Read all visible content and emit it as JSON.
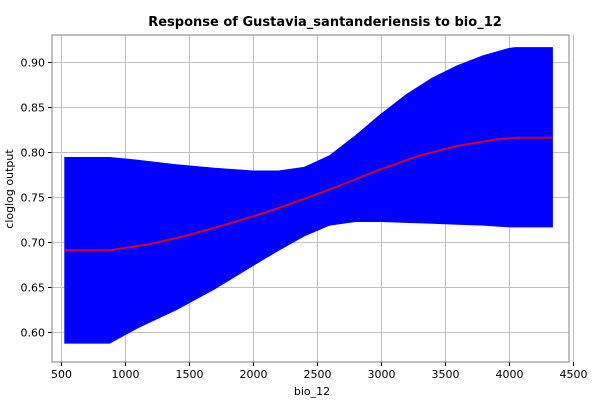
{
  "chart_data": {
    "type": "area",
    "title": "Response of Gustavia_santanderiensis to bio_12",
    "xlabel": "bio_12",
    "ylabel": "cloglog output",
    "xlim": [
      430,
      4470
    ],
    "ylim": [
      0.567,
      0.93
    ],
    "xticks": [
      500,
      1000,
      1500,
      2000,
      2500,
      3000,
      3500,
      4000,
      4500
    ],
    "xtick_labels": [
      "500",
      "1000",
      "1500",
      "2000",
      "2500",
      "3000",
      "3500",
      "4000",
      "4500"
    ],
    "yticks": [
      0.6,
      0.65,
      0.7,
      0.75,
      0.8,
      0.85,
      0.9
    ],
    "ytick_labels": [
      "0.60",
      "0.65",
      "0.70",
      "0.75",
      "0.80",
      "0.85",
      "0.90"
    ],
    "grid": true,
    "band_color": "#0000ff",
    "line_color": "#cc0033",
    "series": [
      {
        "role": "mean",
        "x": [
          530,
          880,
          1200,
          1500,
          1800,
          2100,
          2400,
          2700,
          3000,
          3300,
          3600,
          3900,
          4050,
          4340
        ],
        "values": [
          0.691,
          0.691,
          0.698,
          0.708,
          0.72,
          0.733,
          0.748,
          0.764,
          0.781,
          0.796,
          0.807,
          0.814,
          0.816,
          0.816
        ]
      },
      {
        "role": "upper",
        "x": [
          530,
          880,
          1100,
          1400,
          1700,
          2000,
          2200,
          2400,
          2600,
          2800,
          3000,
          3200,
          3400,
          3600,
          3800,
          4000,
          4050,
          4340
        ],
        "values": [
          0.794,
          0.794,
          0.791,
          0.786,
          0.782,
          0.779,
          0.779,
          0.783,
          0.796,
          0.818,
          0.842,
          0.864,
          0.882,
          0.896,
          0.907,
          0.915,
          0.916,
          0.916
        ]
      },
      {
        "role": "lower",
        "x": [
          530,
          880,
          1100,
          1400,
          1700,
          2000,
          2200,
          2400,
          2600,
          2800,
          3000,
          3200,
          3400,
          3600,
          3800,
          4000,
          4050,
          4340
        ],
        "values": [
          0.588,
          0.588,
          0.605,
          0.625,
          0.648,
          0.674,
          0.691,
          0.707,
          0.719,
          0.723,
          0.723,
          0.722,
          0.721,
          0.72,
          0.719,
          0.717,
          0.717,
          0.717
        ]
      }
    ]
  }
}
